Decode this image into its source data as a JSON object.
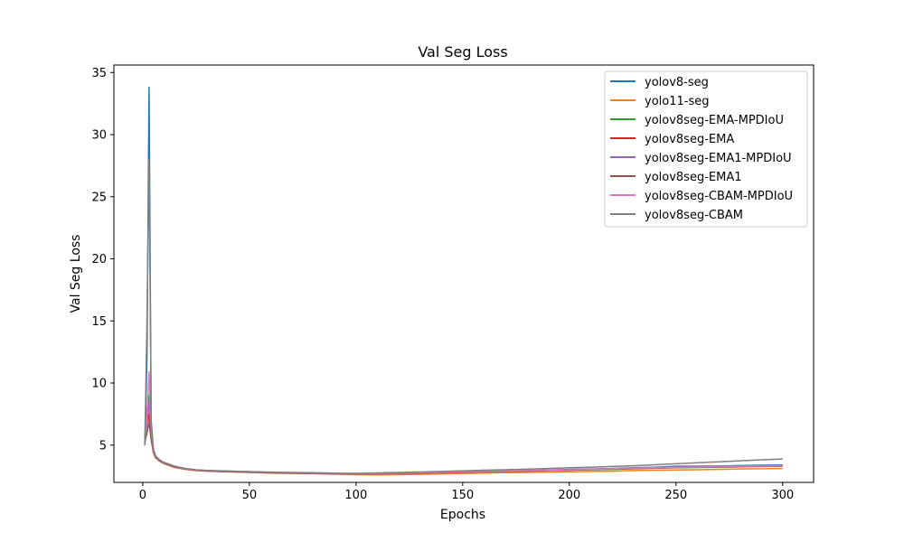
{
  "chart_data": {
    "type": "line",
    "title": "Val Seg Loss",
    "xlabel": "Epochs",
    "ylabel": "Val Seg Loss",
    "xlim": [
      -13.5,
      314.5
    ],
    "ylim": [
      2.0,
      35.6
    ],
    "xticks": [
      0,
      50,
      100,
      150,
      200,
      250,
      300
    ],
    "yticks": [
      5,
      10,
      15,
      20,
      25,
      30,
      35
    ],
    "grid": false,
    "legend": "top-right",
    "series": [
      {
        "name": "yolov8-seg",
        "color": "#1f77b4",
        "points": [
          [
            1,
            5.0
          ],
          [
            2,
            12.0
          ],
          [
            3,
            33.8
          ],
          [
            4,
            6.0
          ],
          [
            5,
            4.6
          ],
          [
            6,
            4.1
          ],
          [
            8,
            3.8
          ],
          [
            10,
            3.6
          ],
          [
            15,
            3.3
          ],
          [
            20,
            3.1
          ],
          [
            25,
            3.0
          ],
          [
            30,
            2.95
          ],
          [
            40,
            2.9
          ],
          [
            50,
            2.85
          ],
          [
            60,
            2.8
          ],
          [
            70,
            2.78
          ],
          [
            80,
            2.75
          ],
          [
            90,
            2.72
          ],
          [
            100,
            2.7
          ],
          [
            110,
            2.72
          ],
          [
            120,
            2.75
          ],
          [
            130,
            2.78
          ],
          [
            140,
            2.8
          ],
          [
            150,
            2.85
          ],
          [
            160,
            2.9
          ],
          [
            170,
            2.92
          ],
          [
            180,
            2.95
          ],
          [
            190,
            3.0
          ],
          [
            200,
            3.05
          ],
          [
            210,
            3.08
          ],
          [
            220,
            3.12
          ],
          [
            230,
            3.18
          ],
          [
            240,
            3.22
          ],
          [
            250,
            3.3
          ],
          [
            260,
            3.3
          ],
          [
            270,
            3.32
          ],
          [
            280,
            3.35
          ],
          [
            290,
            3.38
          ],
          [
            300,
            3.4
          ]
        ]
      },
      {
        "name": "yolo11-seg",
        "color": "#ff7f0e",
        "points": [
          [
            1,
            5.2
          ],
          [
            2,
            6.5
          ],
          [
            3,
            7.5
          ],
          [
            4,
            5.5
          ],
          [
            5,
            4.4
          ],
          [
            6,
            4.0
          ],
          [
            8,
            3.7
          ],
          [
            10,
            3.5
          ],
          [
            15,
            3.2
          ],
          [
            20,
            3.05
          ],
          [
            25,
            2.95
          ],
          [
            30,
            2.9
          ],
          [
            40,
            2.85
          ],
          [
            50,
            2.8
          ],
          [
            60,
            2.75
          ],
          [
            70,
            2.72
          ],
          [
            80,
            2.7
          ],
          [
            90,
            2.66
          ],
          [
            100,
            2.62
          ],
          [
            110,
            2.6
          ],
          [
            120,
            2.62
          ],
          [
            130,
            2.65
          ],
          [
            140,
            2.68
          ],
          [
            150,
            2.72
          ],
          [
            160,
            2.75
          ],
          [
            170,
            2.78
          ],
          [
            180,
            2.8
          ],
          [
            190,
            2.82
          ],
          [
            200,
            2.85
          ],
          [
            210,
            2.88
          ],
          [
            220,
            2.9
          ],
          [
            230,
            2.95
          ],
          [
            240,
            2.98
          ],
          [
            250,
            3.0
          ],
          [
            260,
            3.02
          ],
          [
            270,
            3.05
          ],
          [
            280,
            3.08
          ],
          [
            290,
            3.1
          ],
          [
            300,
            3.12
          ]
        ]
      },
      {
        "name": "yolov8seg-EMA-MPDIoU",
        "color": "#2ca02c",
        "points": [
          [
            1,
            5.1
          ],
          [
            2,
            7.0
          ],
          [
            3,
            9.0
          ],
          [
            4,
            5.8
          ],
          [
            5,
            4.5
          ],
          [
            6,
            4.05
          ],
          [
            8,
            3.75
          ],
          [
            10,
            3.55
          ],
          [
            15,
            3.25
          ],
          [
            20,
            3.08
          ],
          [
            25,
            2.98
          ],
          [
            30,
            2.93
          ],
          [
            40,
            2.88
          ],
          [
            50,
            2.83
          ],
          [
            60,
            2.78
          ],
          [
            70,
            2.75
          ],
          [
            80,
            2.72
          ],
          [
            90,
            2.69
          ],
          [
            100,
            2.67
          ],
          [
            110,
            2.69
          ],
          [
            120,
            2.72
          ],
          [
            130,
            2.75
          ],
          [
            140,
            2.78
          ],
          [
            150,
            2.82
          ],
          [
            160,
            2.86
          ],
          [
            170,
            2.88
          ],
          [
            180,
            2.91
          ],
          [
            190,
            2.95
          ],
          [
            200,
            2.98
          ],
          [
            210,
            3.02
          ],
          [
            220,
            3.05
          ],
          [
            230,
            3.1
          ],
          [
            240,
            3.14
          ],
          [
            250,
            3.18
          ],
          [
            260,
            3.2
          ],
          [
            270,
            3.22
          ],
          [
            280,
            3.25
          ],
          [
            290,
            3.28
          ],
          [
            300,
            3.3
          ]
        ]
      },
      {
        "name": "yolov8seg-EMA",
        "color": "#d62728",
        "points": [
          [
            1,
            5.3
          ],
          [
            2,
            8.0
          ],
          [
            3,
            7.2
          ],
          [
            4,
            5.6
          ],
          [
            5,
            4.5
          ],
          [
            6,
            4.05
          ],
          [
            8,
            3.75
          ],
          [
            10,
            3.55
          ],
          [
            15,
            3.25
          ],
          [
            20,
            3.08
          ],
          [
            25,
            2.98
          ],
          [
            30,
            2.93
          ],
          [
            40,
            2.88
          ],
          [
            50,
            2.83
          ],
          [
            60,
            2.79
          ],
          [
            70,
            2.76
          ],
          [
            80,
            2.73
          ],
          [
            90,
            2.7
          ],
          [
            100,
            2.68
          ],
          [
            110,
            2.7
          ],
          [
            120,
            2.73
          ],
          [
            130,
            2.76
          ],
          [
            140,
            2.79
          ],
          [
            150,
            2.83
          ],
          [
            160,
            2.87
          ],
          [
            170,
            2.9
          ],
          [
            180,
            2.93
          ],
          [
            190,
            2.97
          ],
          [
            200,
            3.0
          ],
          [
            210,
            3.04
          ],
          [
            220,
            3.08
          ],
          [
            230,
            3.12
          ],
          [
            240,
            3.16
          ],
          [
            250,
            3.2
          ],
          [
            260,
            3.22
          ],
          [
            270,
            3.25
          ],
          [
            280,
            3.28
          ],
          [
            290,
            3.3
          ],
          [
            300,
            3.32
          ]
        ]
      },
      {
        "name": "yolov8seg-EMA1-MPDIoU",
        "color": "#9467bd",
        "points": [
          [
            1,
            5.0
          ],
          [
            2,
            6.8
          ],
          [
            3,
            8.5
          ],
          [
            4,
            5.7
          ],
          [
            5,
            4.5
          ],
          [
            6,
            4.05
          ],
          [
            8,
            3.75
          ],
          [
            10,
            3.55
          ],
          [
            15,
            3.25
          ],
          [
            20,
            3.08
          ],
          [
            25,
            2.98
          ],
          [
            30,
            2.93
          ],
          [
            40,
            2.88
          ],
          [
            50,
            2.83
          ],
          [
            60,
            2.79
          ],
          [
            70,
            2.76
          ],
          [
            80,
            2.73
          ],
          [
            90,
            2.7
          ],
          [
            100,
            2.68
          ],
          [
            110,
            2.7
          ],
          [
            120,
            2.73
          ],
          [
            130,
            2.76
          ],
          [
            140,
            2.79
          ],
          [
            150,
            2.83
          ],
          [
            160,
            2.87
          ],
          [
            170,
            2.9
          ],
          [
            180,
            2.93
          ],
          [
            190,
            2.97
          ],
          [
            200,
            3.01
          ],
          [
            210,
            3.05
          ],
          [
            220,
            3.09
          ],
          [
            230,
            3.13
          ],
          [
            240,
            3.17
          ],
          [
            250,
            3.21
          ],
          [
            260,
            3.24
          ],
          [
            270,
            3.27
          ],
          [
            280,
            3.3
          ],
          [
            290,
            3.33
          ],
          [
            300,
            3.35
          ]
        ]
      },
      {
        "name": "yolov8seg-EMA1",
        "color": "#8c564b",
        "points": [
          [
            1,
            5.2
          ],
          [
            2,
            6.0
          ],
          [
            3,
            6.8
          ],
          [
            4,
            5.4
          ],
          [
            5,
            4.4
          ],
          [
            6,
            4.0
          ],
          [
            8,
            3.72
          ],
          [
            10,
            3.52
          ],
          [
            15,
            3.22
          ],
          [
            20,
            3.06
          ],
          [
            25,
            2.96
          ],
          [
            30,
            2.91
          ],
          [
            40,
            2.86
          ],
          [
            50,
            2.81
          ],
          [
            60,
            2.77
          ],
          [
            70,
            2.74
          ],
          [
            80,
            2.71
          ],
          [
            90,
            2.68
          ],
          [
            100,
            2.66
          ],
          [
            110,
            2.68
          ],
          [
            120,
            2.71
          ],
          [
            130,
            2.74
          ],
          [
            140,
            2.77
          ],
          [
            150,
            2.81
          ],
          [
            160,
            2.85
          ],
          [
            170,
            2.88
          ],
          [
            180,
            2.91
          ],
          [
            190,
            2.95
          ],
          [
            200,
            2.99
          ],
          [
            210,
            3.03
          ],
          [
            220,
            3.07
          ],
          [
            230,
            3.11
          ],
          [
            240,
            3.15
          ],
          [
            250,
            3.19
          ],
          [
            260,
            3.22
          ],
          [
            270,
            3.25
          ],
          [
            280,
            3.28
          ],
          [
            290,
            3.31
          ],
          [
            300,
            3.33
          ]
        ]
      },
      {
        "name": "yolov8seg-CBAM-MPDIoU",
        "color": "#e377c2",
        "points": [
          [
            1,
            5.1
          ],
          [
            2,
            7.5
          ],
          [
            3,
            10.9
          ],
          [
            4,
            6.2
          ],
          [
            5,
            4.6
          ],
          [
            6,
            4.1
          ],
          [
            8,
            3.78
          ],
          [
            10,
            3.58
          ],
          [
            15,
            3.28
          ],
          [
            20,
            3.1
          ],
          [
            25,
            3.0
          ],
          [
            30,
            2.95
          ],
          [
            40,
            2.9
          ],
          [
            50,
            2.85
          ],
          [
            60,
            2.81
          ],
          [
            70,
            2.78
          ],
          [
            80,
            2.75
          ],
          [
            90,
            2.72
          ],
          [
            100,
            2.7
          ],
          [
            110,
            2.72
          ],
          [
            120,
            2.75
          ],
          [
            130,
            2.78
          ],
          [
            140,
            2.81
          ],
          [
            150,
            2.85
          ],
          [
            160,
            2.89
          ],
          [
            170,
            2.92
          ],
          [
            180,
            2.95
          ],
          [
            190,
            2.99
          ],
          [
            200,
            3.02
          ],
          [
            210,
            3.06
          ],
          [
            220,
            3.1
          ],
          [
            230,
            3.14
          ],
          [
            240,
            3.18
          ],
          [
            250,
            3.22
          ],
          [
            260,
            3.24
          ],
          [
            270,
            3.27
          ],
          [
            280,
            3.3
          ],
          [
            290,
            3.32
          ],
          [
            300,
            3.34
          ]
        ]
      },
      {
        "name": "yolov8seg-CBAM",
        "color": "#7f7f7f",
        "points": [
          [
            1,
            5.0
          ],
          [
            2,
            15.0
          ],
          [
            3,
            28.0
          ],
          [
            4,
            7.0
          ],
          [
            5,
            4.7
          ],
          [
            6,
            4.15
          ],
          [
            8,
            3.8
          ],
          [
            10,
            3.6
          ],
          [
            15,
            3.3
          ],
          [
            20,
            3.12
          ],
          [
            25,
            3.02
          ],
          [
            30,
            2.97
          ],
          [
            40,
            2.92
          ],
          [
            50,
            2.87
          ],
          [
            60,
            2.83
          ],
          [
            70,
            2.8
          ],
          [
            80,
            2.78
          ],
          [
            90,
            2.75
          ],
          [
            100,
            2.73
          ],
          [
            110,
            2.76
          ],
          [
            120,
            2.8
          ],
          [
            130,
            2.84
          ],
          [
            140,
            2.88
          ],
          [
            150,
            2.93
          ],
          [
            160,
            2.98
          ],
          [
            170,
            3.02
          ],
          [
            180,
            3.06
          ],
          [
            190,
            3.12
          ],
          [
            200,
            3.18
          ],
          [
            210,
            3.22
          ],
          [
            220,
            3.28
          ],
          [
            230,
            3.34
          ],
          [
            240,
            3.42
          ],
          [
            250,
            3.5
          ],
          [
            260,
            3.58
          ],
          [
            270,
            3.66
          ],
          [
            280,
            3.74
          ],
          [
            290,
            3.82
          ],
          [
            300,
            3.88
          ]
        ]
      }
    ]
  }
}
